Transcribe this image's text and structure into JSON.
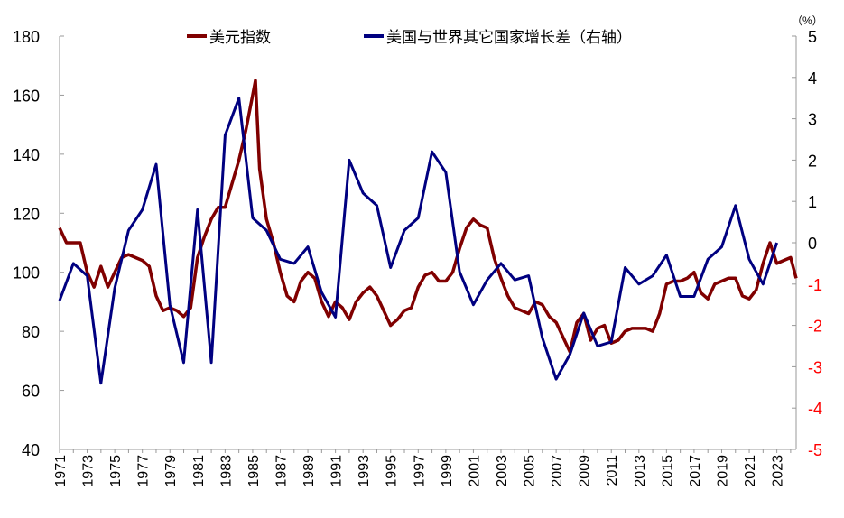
{
  "chart_data": {
    "type": "line",
    "title": "",
    "left_axis": {
      "ylim": [
        40,
        180
      ],
      "ticks": [
        40,
        60,
        80,
        100,
        120,
        140,
        160,
        180
      ]
    },
    "right_axis": {
      "unit_label": "（%）",
      "ylim": [
        -5,
        5
      ],
      "ticks": [
        -5,
        -4,
        -3,
        -2,
        -1,
        0,
        1,
        2,
        3,
        4,
        5
      ],
      "negative_color": "#ff0000",
      "positive_color": "#000000"
    },
    "x_ticks": [
      "1971",
      "1973",
      "1975",
      "1977",
      "1979",
      "1981",
      "1983",
      "1985",
      "1987",
      "1989",
      "1991",
      "1993",
      "1995",
      "1997",
      "1999",
      "2001",
      "2003",
      "2005",
      "2007",
      "2009",
      "2011",
      "2013",
      "2015",
      "2017",
      "2019",
      "2021",
      "2023"
    ],
    "xlim": [
      1971,
      2024.4
    ],
    "grid": false,
    "legend_placement": "top",
    "series": [
      {
        "name": "美元指数",
        "axis": "left",
        "color": "#800000",
        "x": [
          1971.0,
          1971.5,
          1972.0,
          1972.5,
          1973.0,
          1973.5,
          1974.0,
          1974.5,
          1975.0,
          1975.5,
          1976.0,
          1976.5,
          1977.0,
          1977.5,
          1978.0,
          1978.5,
          1979.0,
          1979.5,
          1980.0,
          1980.5,
          1981.0,
          1981.5,
          1982.0,
          1982.5,
          1983.0,
          1983.5,
          1984.0,
          1984.5,
          1985.0,
          1985.2,
          1985.5,
          1986.0,
          1986.5,
          1987.0,
          1987.5,
          1988.0,
          1988.5,
          1989.0,
          1989.5,
          1990.0,
          1990.5,
          1991.0,
          1991.5,
          1992.0,
          1992.5,
          1993.0,
          1993.5,
          1994.0,
          1994.5,
          1995.0,
          1995.5,
          1996.0,
          1996.5,
          1997.0,
          1997.5,
          1998.0,
          1998.5,
          1999.0,
          1999.5,
          2000.0,
          2000.5,
          2001.0,
          2001.5,
          2002.0,
          2002.5,
          2003.0,
          2003.5,
          2004.0,
          2004.5,
          2005.0,
          2005.5,
          2006.0,
          2006.5,
          2007.0,
          2007.5,
          2008.0,
          2008.5,
          2009.0,
          2009.5,
          2010.0,
          2010.5,
          2011.0,
          2011.5,
          2012.0,
          2012.5,
          2013.0,
          2013.5,
          2014.0,
          2014.5,
          2015.0,
          2015.5,
          2016.0,
          2016.5,
          2017.0,
          2017.5,
          2018.0,
          2018.5,
          2019.0,
          2019.5,
          2020.0,
          2020.5,
          2021.0,
          2021.5,
          2022.0,
          2022.5,
          2023.0,
          2023.5,
          2024.0,
          2024.4
        ],
        "values": [
          115,
          110,
          110,
          110,
          100,
          95,
          102,
          95,
          100,
          105,
          106,
          105,
          104,
          102,
          92,
          87,
          88,
          87,
          85,
          88,
          105,
          112,
          118,
          122,
          122,
          130,
          138,
          148,
          160,
          165,
          135,
          118,
          110,
          100,
          92,
          90,
          97,
          100,
          98,
          90,
          85,
          90,
          88,
          84,
          90,
          93,
          95,
          92,
          87,
          82,
          84,
          87,
          88,
          95,
          99,
          100,
          97,
          97,
          100,
          108,
          115,
          118,
          116,
          115,
          105,
          98,
          92,
          88,
          87,
          86,
          90,
          89,
          85,
          83,
          78,
          73,
          83,
          86,
          77,
          81,
          82,
          76,
          77,
          80,
          81,
          81,
          81,
          80,
          86,
          96,
          97,
          97,
          98,
          100,
          93,
          91,
          96,
          97,
          98,
          98,
          92,
          91,
          94,
          103,
          110,
          103,
          104,
          105,
          98
        ]
      },
      {
        "name": "美国与世界其它国家增长差（右轴）",
        "axis": "right",
        "color": "#000080",
        "x": [
          1971,
          1972,
          1973,
          1974,
          1975,
          1976,
          1977,
          1978,
          1979,
          1980,
          1981,
          1982,
          1983,
          1984,
          1985,
          1986,
          1987,
          1988,
          1989,
          1990,
          1991,
          1992,
          1993,
          1994,
          1995,
          1996,
          1997,
          1998,
          1999,
          2000,
          2001,
          2002,
          2003,
          2004,
          2005,
          2006,
          2007,
          2008,
          2009,
          2010,
          2011,
          2012,
          2013,
          2014,
          2015,
          2016,
          2017,
          2018,
          2019,
          2020,
          2021,
          2022,
          2023
        ],
        "values": [
          -1.4,
          -0.5,
          -0.8,
          -3.4,
          -1.1,
          0.3,
          0.8,
          1.9,
          -1.5,
          -2.9,
          0.8,
          -2.9,
          2.6,
          3.5,
          0.6,
          0.3,
          -0.4,
          -0.5,
          -0.1,
          -1.2,
          -1.8,
          2.0,
          1.2,
          0.9,
          -0.6,
          0.3,
          0.6,
          2.2,
          1.7,
          -0.7,
          -1.5,
          -0.9,
          -0.5,
          -0.9,
          -0.8,
          -2.3,
          -3.3,
          -2.7,
          -1.7,
          -2.5,
          -2.4,
          -0.6,
          -1.0,
          -0.8,
          -0.3,
          -1.3,
          -1.3,
          -0.4,
          -0.1,
          0.9,
          -0.4,
          -1.0,
          0.0
        ]
      }
    ]
  }
}
